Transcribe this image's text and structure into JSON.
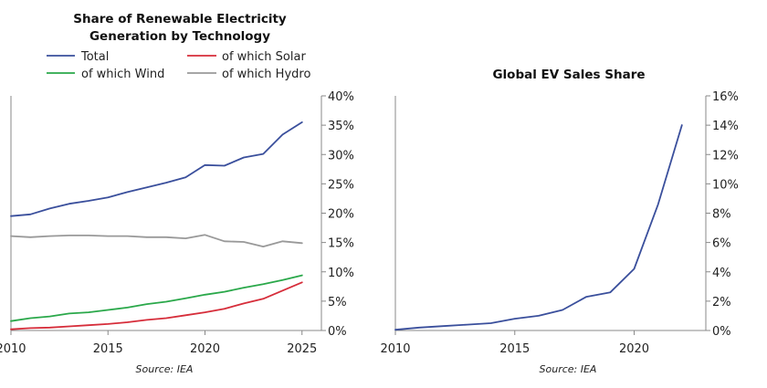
{
  "chart_data": [
    {
      "type": "line",
      "title": [
        "Share of Renewable Electricity",
        "Generation by Technology"
      ],
      "source": "Source: IEA",
      "xlabel": "",
      "ylabel": "",
      "xlim": [
        2010,
        2026
      ],
      "ylim": [
        0,
        40
      ],
      "x_ticks": [
        2010,
        2015,
        2020,
        2025
      ],
      "y_ticks": [
        0,
        5,
        10,
        15,
        20,
        25,
        30,
        35,
        40
      ],
      "y_tick_labels": [
        "0%",
        "5%",
        "10%",
        "15%",
        "20%",
        "25%",
        "30%",
        "35%",
        "40%"
      ],
      "x": [
        2010,
        2011,
        2012,
        2013,
        2014,
        2015,
        2016,
        2017,
        2018,
        2019,
        2020,
        2021,
        2022,
        2023,
        2024,
        2025
      ],
      "legend_position": "top",
      "series": [
        {
          "name": "Total",
          "color": "#3a4f9c",
          "values": [
            19.5,
            19.8,
            20.8,
            21.6,
            22.1,
            22.7,
            23.6,
            24.4,
            25.2,
            26.1,
            28.2,
            28.1,
            29.5,
            30.1,
            33.4,
            35.5
          ]
        },
        {
          "name": "of which Solar",
          "color": "#d62d3a",
          "values": [
            0.2,
            0.4,
            0.5,
            0.7,
            0.9,
            1.1,
            1.4,
            1.8,
            2.1,
            2.6,
            3.1,
            3.7,
            4.6,
            5.4,
            6.8,
            8.2
          ]
        },
        {
          "name": "of which Wind",
          "color": "#2aa84a",
          "values": [
            1.6,
            2.1,
            2.4,
            2.9,
            3.1,
            3.5,
            3.9,
            4.5,
            4.9,
            5.5,
            6.1,
            6.6,
            7.3,
            7.9,
            8.6,
            9.4
          ]
        },
        {
          "name": "of which Hydro",
          "color": "#999999",
          "values": [
            16.1,
            15.9,
            16.1,
            16.2,
            16.2,
            16.1,
            16.1,
            15.9,
            15.9,
            15.7,
            16.3,
            15.2,
            15.1,
            14.3,
            15.2,
            14.9
          ]
        }
      ]
    },
    {
      "type": "line",
      "title": [
        "Global EV Sales Share"
      ],
      "source": "Source: IEA",
      "xlabel": "",
      "ylabel": "",
      "xlim": [
        2010,
        2023
      ],
      "ylim": [
        0,
        16
      ],
      "x_ticks": [
        2010,
        2015,
        2020
      ],
      "y_ticks": [
        0,
        2,
        4,
        6,
        8,
        10,
        12,
        14,
        16
      ],
      "y_tick_labels": [
        "0%",
        "2%",
        "4%",
        "6%",
        "8%",
        "10%",
        "12%",
        "14%",
        "16%"
      ],
      "x": [
        2010,
        2011,
        2012,
        2013,
        2014,
        2015,
        2016,
        2017,
        2018,
        2019,
        2020,
        2021,
        2022
      ],
      "series": [
        {
          "name": "EV Sales Share",
          "color": "#3a4f9c",
          "values": [
            0.05,
            0.2,
            0.3,
            0.4,
            0.5,
            0.8,
            1.0,
            1.4,
            2.3,
            2.6,
            4.2,
            8.6,
            14.0
          ]
        }
      ]
    }
  ]
}
